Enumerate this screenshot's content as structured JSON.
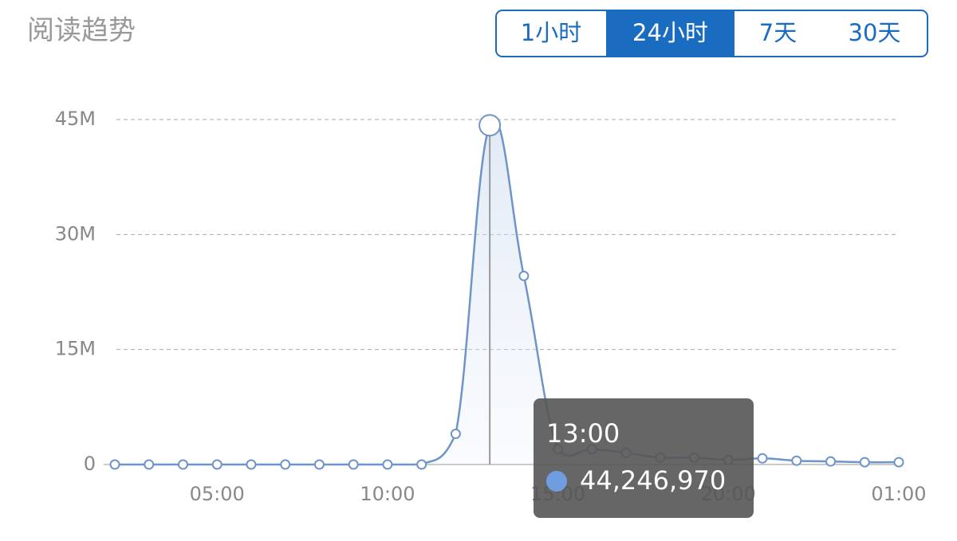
{
  "title": "阅读趋势",
  "tabs": {
    "items": [
      "1小时",
      "24小时",
      "7天",
      "30天"
    ],
    "active": 1
  },
  "tooltip": {
    "time": "13:00",
    "value_label": "44,246,970"
  },
  "chart_data": {
    "type": "line",
    "color": "#6f94c8",
    "categories": [
      null,
      null,
      null,
      "05:00",
      null,
      null,
      null,
      null,
      "10:00",
      null,
      null,
      null,
      null,
      "15:00",
      null,
      null,
      null,
      null,
      "20:00",
      null,
      null,
      null,
      null,
      "01:00"
    ],
    "values": [
      0,
      0,
      0,
      0,
      0,
      0,
      0,
      0,
      0,
      0,
      4000000,
      44246970,
      24600000,
      2000000,
      2000000,
      1500000,
      900000,
      900000,
      600000,
      800000,
      500000,
      400000,
      300000,
      300000
    ],
    "ylim": [
      0,
      45000000
    ],
    "yticks": [
      0,
      {
        "value": 15000000,
        "label": "15M"
      },
      {
        "value": 30000000,
        "label": "30M"
      },
      {
        "value": 45000000,
        "label": "45M"
      }
    ],
    "grid": true
  }
}
